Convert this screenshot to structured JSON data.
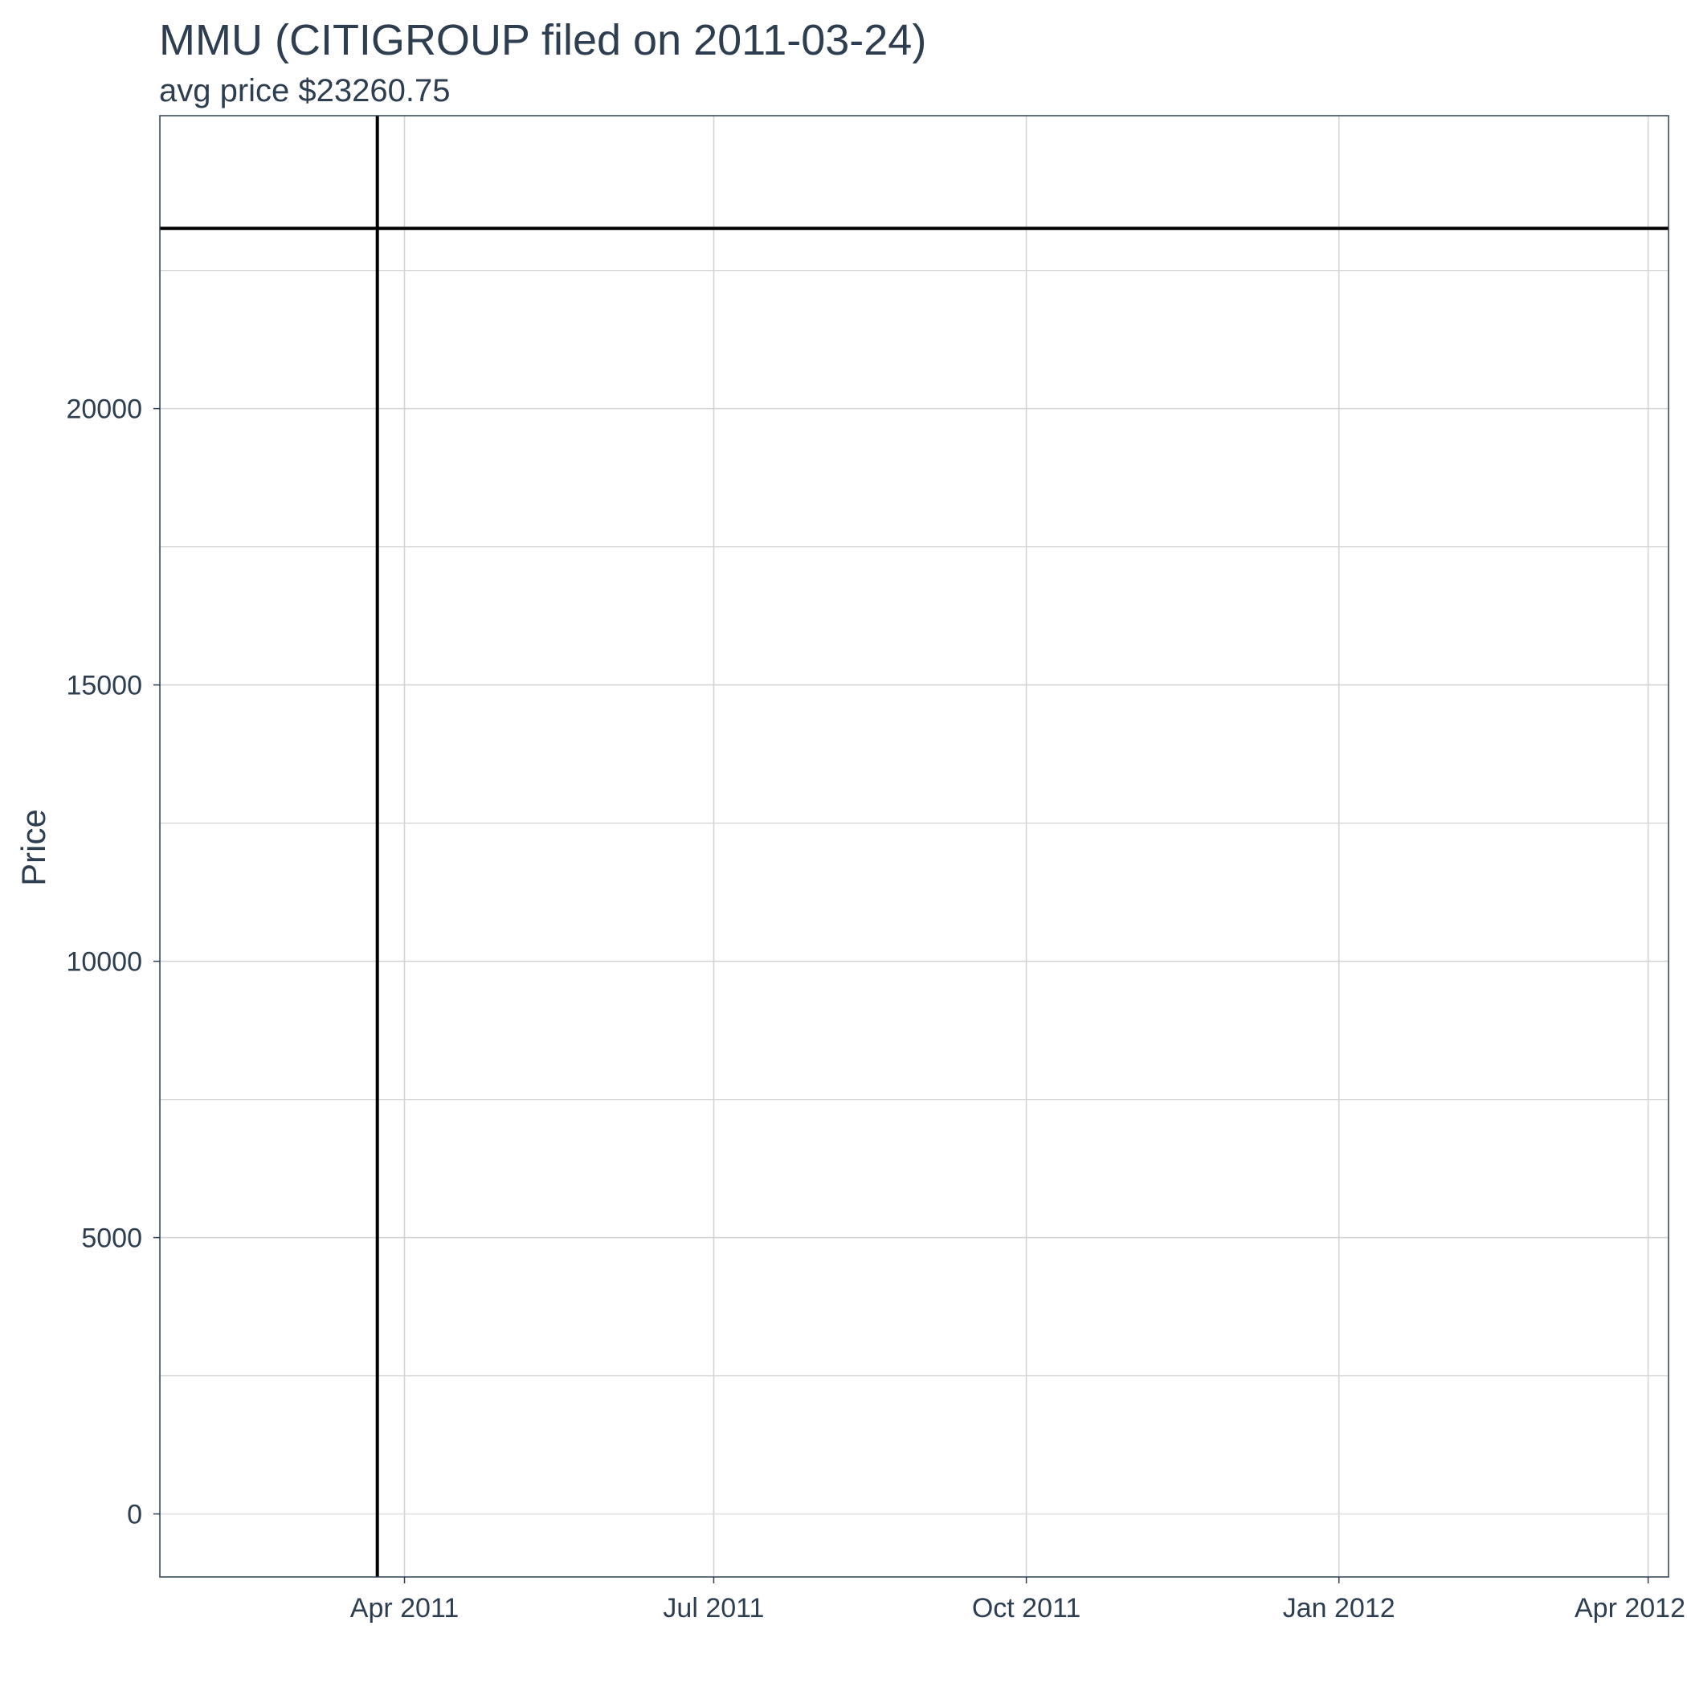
{
  "chart_data": {
    "type": "line",
    "title": "MMU (CITIGROUP filed on 2011-03-24)",
    "subtitle": "avg price $23260.75",
    "ylabel": "Price",
    "xlabel": "",
    "ylim": [
      -1140,
      25300
    ],
    "xlim": [
      "2011-01-19",
      "2012-04-07"
    ],
    "y_ticks": [
      0,
      5000,
      10000,
      15000,
      20000
    ],
    "y_minor_ticks": [
      2500,
      7500,
      12500,
      17500,
      22500
    ],
    "x_ticks": [
      {
        "date": "2011-04-01",
        "label": "Apr 2011"
      },
      {
        "date": "2011-07-01",
        "label": "Jul 2011"
      },
      {
        "date": "2011-10-01",
        "label": "Oct 2011"
      },
      {
        "date": "2012-01-01",
        "label": "Jan 2012"
      },
      {
        "date": "2012-04-01",
        "label": "Apr 2012"
      }
    ],
    "series": [
      {
        "values": [
          0,
          0
        ]
      }
    ],
    "x": [
      "2011-01-19",
      "2012-04-07"
    ],
    "reference_lines": {
      "horizontal": 23260.75,
      "vertical_date": "2011-03-24"
    },
    "grid": true,
    "colors": {
      "text": "#2c3e50",
      "grid": "#d4d4d4",
      "reference": "#000000",
      "panel_border": "#2c3e50"
    }
  }
}
